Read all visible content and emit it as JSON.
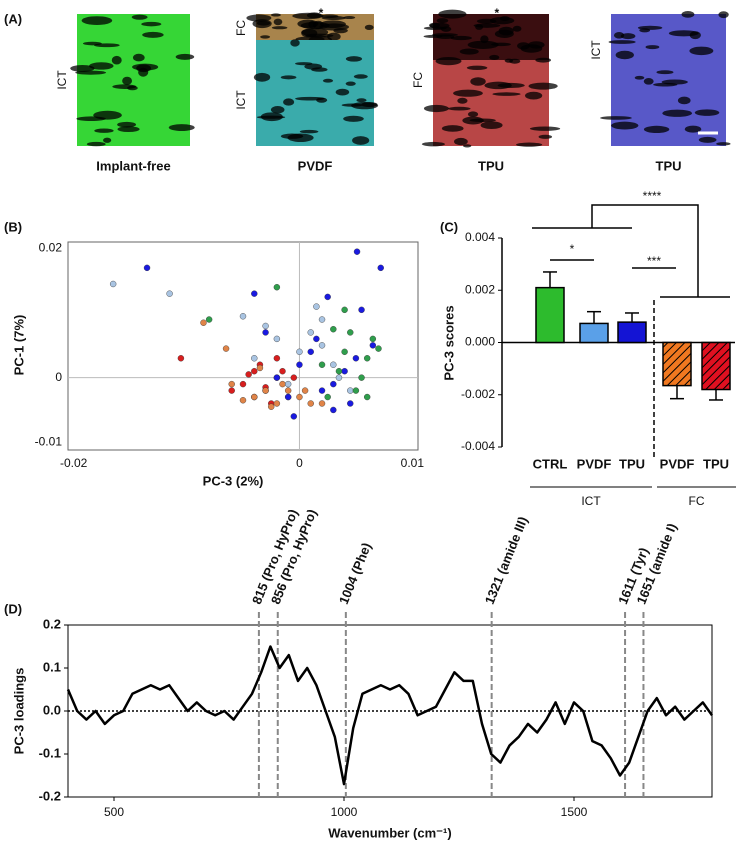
{
  "panel_a": {
    "label": "(A)",
    "images": [
      {
        "caption": "Implant-free",
        "side_labels": [
          "ICT"
        ]
      },
      {
        "caption": "PVDF",
        "side_labels": [
          "FC",
          "ICT"
        ],
        "marker": "*"
      },
      {
        "caption": "TPU",
        "side_labels": [
          "FC"
        ],
        "marker": "*"
      },
      {
        "caption": "TPU",
        "side_labels": [
          "ICT"
        ]
      }
    ]
  },
  "chart_data": [
    {
      "type": "scatter",
      "panel": "(B)",
      "xlabel": "PC-3 (2%)",
      "ylabel": "PC-1 (7%)",
      "xlim": [
        -0.0205,
        0.0105
      ],
      "ylim": [
        -0.0112,
        0.021
      ],
      "xticks": [
        -0.02,
        0,
        0.01
      ],
      "yticks": [
        -0.01,
        0,
        0.02
      ],
      "series": [
        {
          "color": "#d81e1e",
          "x": [
            -0.004,
            -0.003,
            -0.002,
            -0.005,
            -0.001,
            -0.0035,
            -0.0025,
            -0.0045,
            -0.0015,
            -0.003,
            -0.006,
            -0.0005,
            -0.002,
            -0.004,
            -0.0105
          ],
          "values": [
            0.001,
            -0.002,
            0.0,
            -0.001,
            -0.003,
            0.002,
            -0.004,
            0.0005,
            0.001,
            -0.0015,
            -0.002,
            0.0,
            0.003,
            -0.003,
            0.003
          ]
        },
        {
          "color": "#e08448",
          "x": [
            -0.006,
            -0.004,
            -0.002,
            -0.001,
            0.0,
            0.001,
            -0.003,
            -0.005,
            -0.0015,
            0.0005,
            -0.0085,
            -0.0025,
            -0.0035,
            0.002,
            -0.0065
          ],
          "values": [
            -0.001,
            -0.003,
            -0.004,
            -0.002,
            -0.003,
            -0.004,
            -0.002,
            -0.0035,
            -0.001,
            -0.002,
            0.0085,
            -0.0045,
            0.0015,
            -0.004,
            0.0045
          ]
        },
        {
          "color": "#1a1ae0",
          "x": [
            -0.002,
            0.0,
            0.002,
            0.004,
            0.001,
            -0.001,
            0.003,
            0.005,
            0.0015,
            -0.003,
            0.0045,
            0.0065,
            0.0055,
            0.0025,
            -0.0135,
            -0.004,
            0.0051,
            0.0072,
            -0.0005,
            0.003
          ],
          "values": [
            0.0,
            0.002,
            -0.002,
            0.001,
            0.004,
            -0.003,
            -0.005,
            0.003,
            0.006,
            0.007,
            -0.004,
            0.005,
            0.0105,
            0.0125,
            0.017,
            0.013,
            0.0195,
            0.017,
            -0.006,
            -0.001
          ]
        },
        {
          "color": "#a9c4e2",
          "x": [
            -0.004,
            -0.002,
            0.0,
            0.002,
            0.003,
            -0.001,
            0.001,
            -0.003,
            0.0045,
            -0.0165,
            -0.0115,
            0.002,
            -0.005,
            0.0015,
            0.0035
          ],
          "values": [
            0.003,
            0.006,
            0.004,
            0.005,
            0.002,
            -0.001,
            0.007,
            0.008,
            -0.002,
            0.0145,
            0.013,
            0.009,
            0.0095,
            0.011,
            0.0
          ]
        },
        {
          "color": "#2f9e4c",
          "x": [
            0.002,
            0.004,
            0.006,
            0.005,
            0.003,
            0.007,
            0.004,
            0.0055,
            0.0065,
            -0.002,
            0.0025,
            -0.008,
            0.006,
            0.0045,
            0.0035
          ],
          "values": [
            0.002,
            0.004,
            0.003,
            -0.002,
            0.0075,
            0.0045,
            0.0105,
            0.0,
            0.006,
            0.014,
            -0.003,
            0.009,
            -0.003,
            0.007,
            0.001
          ]
        }
      ]
    },
    {
      "type": "bar",
      "panel": "(C)",
      "ylabel": "PC-3 scores",
      "ylim": [
        -0.004,
        0.004
      ],
      "yticks": [
        -0.004,
        -0.002,
        {
          "value": 0,
          "label": "0.000"
        },
        0.002,
        0.004
      ],
      "groups": [
        {
          "name": "ICT",
          "categories": [
            "CTRL",
            "PVDF",
            "TPU"
          ],
          "values": [
            0.0021,
            0.00073,
            0.00078
          ],
          "errors": [
            0.0006,
            0.00045,
            0.00035
          ],
          "colors": [
            "#2dbb2d",
            "#5aa0e8",
            "#1414d4"
          ]
        },
        {
          "name": "FC",
          "categories": [
            "PVDF",
            "TPU"
          ],
          "values": [
            -0.00165,
            -0.0018
          ],
          "errors": [
            0.0005,
            0.0004
          ],
          "colors": [
            "#f07820",
            "#e01020"
          ],
          "hatched": true
        }
      ],
      "annotations": [
        {
          "text": "*"
        },
        {
          "text": "***"
        },
        {
          "text": "****"
        }
      ]
    },
    {
      "type": "line",
      "panel": "(D)",
      "xlabel": "Wavenumber (cm⁻¹)",
      "ylabel": "PC-3 loadings",
      "color": "#000000",
      "xlim": [
        400,
        1800
      ],
      "ylim": [
        -0.2,
        0.2
      ],
      "xticks": [
        500,
        1000,
        1500
      ],
      "yticks": [
        -0.2,
        -0.1,
        {
          "value": 0,
          "label": "0.0"
        },
        0.1,
        0.2
      ],
      "x": [
        400,
        420,
        440,
        460,
        480,
        500,
        520,
        540,
        560,
        580,
        600,
        620,
        640,
        660,
        680,
        700,
        720,
        740,
        760,
        780,
        800,
        820,
        840,
        860,
        880,
        900,
        920,
        940,
        960,
        980,
        1000,
        1020,
        1040,
        1060,
        1080,
        1100,
        1120,
        1140,
        1160,
        1180,
        1200,
        1220,
        1240,
        1260,
        1280,
        1300,
        1320,
        1340,
        1360,
        1380,
        1400,
        1420,
        1440,
        1460,
        1480,
        1500,
        1520,
        1540,
        1560,
        1580,
        1600,
        1620,
        1640,
        1660,
        1680,
        1700,
        1720,
        1740,
        1760,
        1780,
        1800
      ],
      "values": [
        0.05,
        0.0,
        -0.02,
        0.0,
        -0.03,
        -0.01,
        0.0,
        0.04,
        0.05,
        0.06,
        0.05,
        0.06,
        0.03,
        0.0,
        0.02,
        0.0,
        -0.01,
        0.0,
        -0.02,
        0.01,
        0.04,
        0.09,
        0.15,
        0.1,
        0.13,
        0.07,
        0.1,
        0.06,
        0.0,
        -0.06,
        -0.17,
        -0.04,
        0.04,
        0.05,
        0.06,
        0.05,
        0.06,
        0.04,
        -0.01,
        0.0,
        0.01,
        0.05,
        0.09,
        0.07,
        0.07,
        -0.03,
        -0.1,
        -0.12,
        -0.08,
        -0.06,
        -0.03,
        -0.05,
        -0.02,
        0.02,
        -0.03,
        0.02,
        0.0,
        -0.07,
        -0.08,
        -0.11,
        -0.15,
        -0.12,
        -0.06,
        0.0,
        0.03,
        -0.01,
        0.01,
        -0.02,
        0.0,
        0.02,
        -0.01
      ],
      "markers": [
        {
          "x": 815,
          "label": "815 (Pro, HyPro)"
        },
        {
          "x": 856,
          "label": "856 (Pro, HyPro)"
        },
        {
          "x": 1004,
          "label": "1004 (Phe)"
        },
        {
          "x": 1321,
          "label": "1321 (amide III)"
        },
        {
          "x": 1611,
          "label": "1611 (Tyr)"
        },
        {
          "x": 1651,
          "label": "1651 (amide I)"
        }
      ]
    }
  ]
}
